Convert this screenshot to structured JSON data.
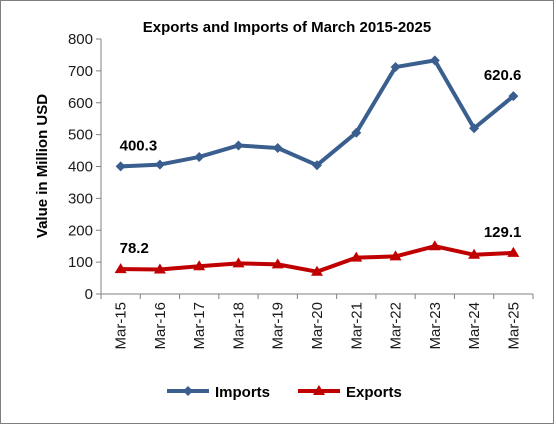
{
  "chart_data": {
    "type": "line",
    "title": "Exports and Imports of March 2015-2025",
    "xlabel": "",
    "ylabel": "Value in Million USD",
    "categories": [
      "Mar-15",
      "Mar-16",
      "Mar-17",
      "Mar-18",
      "Mar-19",
      "Mar-20",
      "Mar-21",
      "Mar-22",
      "Mar-23",
      "Mar-24",
      "Mar-25"
    ],
    "ylim": [
      0,
      800
    ],
    "yticks": [
      "0",
      "100",
      "200",
      "300",
      "400",
      "500",
      "600",
      "700",
      "800"
    ],
    "grid": false,
    "legend_position": "bottom",
    "series": [
      {
        "name": "Imports",
        "color": "#3a5f8f",
        "marker": "diamond",
        "values": [
          400.3,
          406,
          430,
          466,
          458,
          404,
          506,
          712,
          733,
          520,
          620.6
        ],
        "labels": [
          {
            "index": 0,
            "text": "400.3"
          },
          {
            "index": 10,
            "text": "620.6"
          }
        ]
      },
      {
        "name": "Exports",
        "color": "#c00000",
        "marker": "triangle",
        "values": [
          78.2,
          77,
          87,
          96,
          93,
          70,
          114,
          118,
          150,
          123,
          129.1
        ],
        "labels": [
          {
            "index": 0,
            "text": "78.2"
          },
          {
            "index": 10,
            "text": "129.1"
          }
        ]
      }
    ]
  }
}
